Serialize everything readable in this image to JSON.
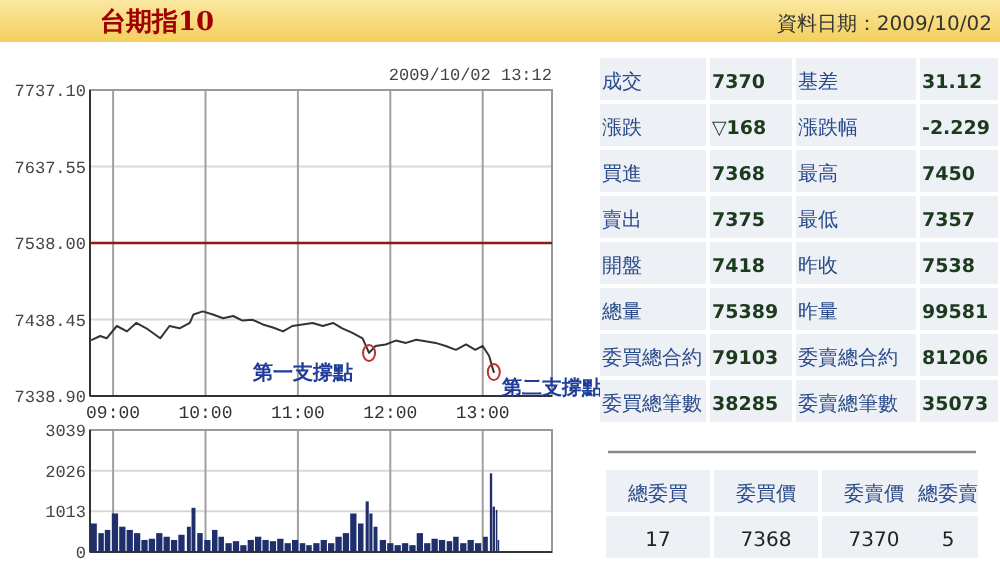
{
  "chart_data": [
    {
      "type": "line",
      "title": "台期指10",
      "subtitle": "2009/10/02 13:12",
      "x": [
        8.77,
        8.86,
        8.93,
        9.04,
        9.15,
        9.25,
        9.36,
        9.51,
        9.61,
        9.72,
        9.83,
        9.87,
        9.97,
        10.08,
        10.19,
        10.3,
        10.4,
        10.51,
        10.62,
        10.73,
        10.84,
        10.94,
        11.05,
        11.16,
        11.27,
        11.38,
        11.48,
        11.59,
        11.7,
        11.77,
        11.84,
        11.95,
        12.06,
        12.17,
        12.28,
        12.38,
        12.49,
        12.6,
        12.71,
        12.82,
        12.92,
        13.0,
        13.07,
        13.12
      ],
      "series": [
        {
          "color": "#333333",
          "values": [
            7412,
            7417,
            7414,
            7430,
            7423,
            7434,
            7427,
            7414,
            7430,
            7427,
            7434,
            7445,
            7449,
            7445,
            7440,
            7443,
            7437,
            7438,
            7432,
            7428,
            7423,
            7430,
            7432,
            7434,
            7430,
            7434,
            7427,
            7421,
            7414,
            7395,
            7404,
            7406,
            7411,
            7408,
            7412,
            7410,
            7408,
            7404,
            7399,
            7406,
            7399,
            7404,
            7391,
            7370
          ]
        }
      ],
      "xlim": [
        8.75,
        13.75
      ],
      "xticks": [
        {
          "value": 9,
          "label": "09:00"
        },
        {
          "value": 10,
          "label": "10:00"
        },
        {
          "value": 11,
          "label": "11:00"
        },
        {
          "value": 12,
          "label": "12:00"
        },
        {
          "value": 13,
          "label": "13:00"
        }
      ],
      "ylim": [
        7338.9,
        7737.1
      ],
      "yticks": [
        {
          "value": 7338.9,
          "label": "7338.90"
        },
        7438.45,
        {
          "value": 7538,
          "label": "7538.00"
        },
        7637.55,
        {
          "value": 7737.1,
          "label": "7737.10"
        }
      ],
      "grid": true,
      "ref_lines": [
        {
          "axis": "y",
          "value": 7538,
          "color": "#8b1a1a"
        }
      ],
      "annotations": [
        {
          "text": "第一支撐點",
          "x": 11.77,
          "y": 7395
        },
        {
          "text": "第二支撐點",
          "x": 13.12,
          "y": 7370
        }
      ]
    },
    {
      "type": "bar",
      "color": "#1f2f6b",
      "x": [
        8.79,
        8.87,
        8.94,
        9.02,
        9.1,
        9.18,
        9.26,
        9.34,
        9.42,
        9.5,
        9.58,
        9.66,
        9.74,
        9.82,
        9.87,
        9.94,
        10.02,
        10.1,
        10.17,
        10.25,
        10.33,
        10.41,
        10.49,
        10.57,
        10.65,
        10.73,
        10.81,
        10.89,
        10.97,
        11.05,
        11.12,
        11.2,
        11.28,
        11.36,
        11.44,
        11.52,
        11.6,
        11.68,
        11.75,
        11.79,
        11.84,
        11.92,
        12.0,
        12.08,
        12.16,
        12.24,
        12.32,
        12.4,
        12.48,
        12.56,
        12.64,
        12.71,
        12.79,
        12.87,
        12.95,
        13.03,
        13.09,
        13.12,
        13.15,
        13.17
      ],
      "values": [
        710,
        470,
        550,
        960,
        630,
        550,
        470,
        300,
        330,
        470,
        380,
        300,
        430,
        630,
        1100,
        470,
        300,
        550,
        380,
        220,
        270,
        170,
        300,
        380,
        300,
        270,
        330,
        220,
        300,
        220,
        170,
        220,
        300,
        220,
        380,
        470,
        960,
        710,
        1260,
        960,
        630,
        300,
        220,
        170,
        220,
        170,
        470,
        220,
        330,
        300,
        270,
        380,
        220,
        300,
        220,
        380,
        1960,
        1130,
        1050,
        300
      ],
      "xlim": [
        8.75,
        13.75
      ],
      "xticks": [
        {
          "value": 9,
          "label": null
        },
        {
          "value": 10,
          "label": null
        },
        {
          "value": 11,
          "label": null
        },
        {
          "value": 12,
          "label": null
        },
        {
          "value": 13,
          "label": null
        }
      ],
      "ylim": [
        0,
        3039
      ],
      "yticks": [
        0,
        1013,
        2026,
        3039
      ],
      "grid": true,
      "tick_labels": "y"
    },
    {
      "type": "other",
      "title": "資料日期：2009/10/02",
      "annotations": [
        "成交",
        "7370",
        "基差",
        "31.12",
        "漲跌",
        "▽168",
        "漲跌幅",
        "-2.229",
        "買進",
        "7368",
        "最高",
        "7450",
        "賣出",
        "7375",
        "最低",
        "7357",
        "開盤",
        "7418",
        "昨收",
        "7538",
        "總量",
        "75389",
        "昨量",
        "99581",
        "委買總合約",
        "79103",
        "委賣總合約",
        "81206",
        "委買總筆數",
        "38285",
        "委賣總筆數",
        "35073"
      ]
    },
    {
      "type": "other",
      "annotations": [
        "總委買",
        "委買價",
        "委賣價",
        "總委賣",
        "17",
        "7368",
        "7370",
        "5"
      ]
    }
  ]
}
